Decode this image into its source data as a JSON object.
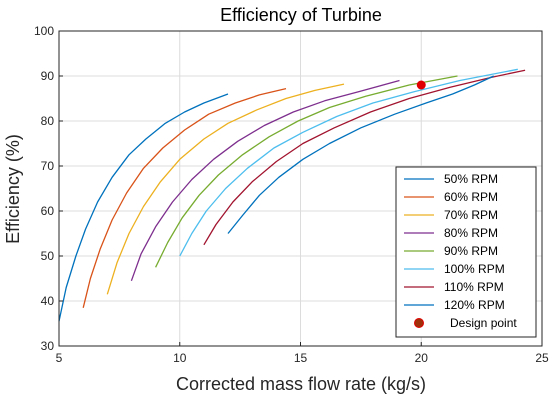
{
  "chart_data": {
    "type": "line",
    "title": "Efficiency of Turbine",
    "xlabel": "Corrected mass flow rate (kg/s)",
    "ylabel": "Efficiency (%)",
    "xlim": [
      5,
      25
    ],
    "ylim": [
      30,
      100
    ],
    "xticks": [
      5,
      10,
      15,
      20,
      25
    ],
    "yticks": [
      30,
      40,
      50,
      60,
      70,
      80,
      90,
      100
    ],
    "grid": true,
    "legend_position": "lower-right",
    "series": [
      {
        "name": "50% RPM",
        "color": "#0072BD",
        "points": [
          [
            5.0,
            35.5
          ],
          [
            5.3,
            43.0
          ],
          [
            5.7,
            50.0
          ],
          [
            6.1,
            56.0
          ],
          [
            6.6,
            62.0
          ],
          [
            7.2,
            67.5
          ],
          [
            7.9,
            72.5
          ],
          [
            8.6,
            76.0
          ],
          [
            9.4,
            79.5
          ],
          [
            10.2,
            82.0
          ],
          [
            11.0,
            84.0
          ],
          [
            12.0,
            86.0
          ]
        ]
      },
      {
        "name": "60% RPM",
        "color": "#D95319",
        "points": [
          [
            6.0,
            38.5
          ],
          [
            6.3,
            45.0
          ],
          [
            6.7,
            51.5
          ],
          [
            7.2,
            58.0
          ],
          [
            7.8,
            64.0
          ],
          [
            8.5,
            69.5
          ],
          [
            9.3,
            74.0
          ],
          [
            10.2,
            78.0
          ],
          [
            11.2,
            81.5
          ],
          [
            12.3,
            84.0
          ],
          [
            13.3,
            85.8
          ],
          [
            14.4,
            87.2
          ]
        ]
      },
      {
        "name": "70% RPM",
        "color": "#EDB120",
        "points": [
          [
            7.0,
            41.5
          ],
          [
            7.4,
            48.5
          ],
          [
            7.9,
            55.0
          ],
          [
            8.5,
            61.0
          ],
          [
            9.2,
            66.5
          ],
          [
            10.0,
            71.5
          ],
          [
            11.0,
            76.0
          ],
          [
            12.0,
            79.5
          ],
          [
            13.2,
            82.5
          ],
          [
            14.4,
            85.0
          ],
          [
            15.6,
            86.8
          ],
          [
            16.8,
            88.2
          ]
        ]
      },
      {
        "name": "80% RPM",
        "color": "#7E2F8E",
        "points": [
          [
            8.0,
            44.5
          ],
          [
            8.4,
            50.5
          ],
          [
            9.0,
            56.5
          ],
          [
            9.7,
            62.0
          ],
          [
            10.5,
            67.0
          ],
          [
            11.4,
            71.5
          ],
          [
            12.4,
            75.5
          ],
          [
            13.5,
            79.0
          ],
          [
            14.7,
            82.0
          ],
          [
            16.0,
            84.5
          ],
          [
            17.4,
            86.5
          ],
          [
            19.1,
            89.0
          ]
        ]
      },
      {
        "name": "90% RPM",
        "color": "#77AC30",
        "points": [
          [
            9.0,
            47.5
          ],
          [
            9.5,
            53.0
          ],
          [
            10.1,
            58.5
          ],
          [
            10.8,
            63.5
          ],
          [
            11.6,
            68.0
          ],
          [
            12.6,
            72.5
          ],
          [
            13.7,
            76.5
          ],
          [
            14.9,
            80.0
          ],
          [
            16.2,
            83.0
          ],
          [
            17.7,
            85.5
          ],
          [
            19.5,
            88.0
          ],
          [
            21.5,
            90.0
          ]
        ]
      },
      {
        "name": "100% RPM",
        "color": "#4DBEEE",
        "points": [
          [
            10.0,
            50.0
          ],
          [
            10.5,
            55.0
          ],
          [
            11.1,
            60.0
          ],
          [
            11.9,
            65.0
          ],
          [
            12.8,
            69.5
          ],
          [
            13.9,
            74.0
          ],
          [
            15.1,
            77.5
          ],
          [
            16.5,
            81.0
          ],
          [
            18.0,
            84.0
          ],
          [
            19.7,
            86.5
          ],
          [
            21.6,
            89.0
          ],
          [
            24.0,
            91.5
          ]
        ]
      },
      {
        "name": "110% RPM",
        "color": "#A2142F",
        "points": [
          [
            11.0,
            52.5
          ],
          [
            11.5,
            57.0
          ],
          [
            12.2,
            62.0
          ],
          [
            13.0,
            66.5
          ],
          [
            14.0,
            71.0
          ],
          [
            15.1,
            75.0
          ],
          [
            16.4,
            78.5
          ],
          [
            17.9,
            82.0
          ],
          [
            19.5,
            85.0
          ],
          [
            21.2,
            87.5
          ],
          [
            22.9,
            89.7
          ],
          [
            24.3,
            91.3
          ]
        ]
      },
      {
        "name": "120% RPM",
        "color": "#0072BD",
        "points": [
          [
            12.0,
            55.0
          ],
          [
            12.6,
            59.0
          ],
          [
            13.3,
            63.5
          ],
          [
            14.1,
            67.5
          ],
          [
            15.1,
            71.5
          ],
          [
            16.2,
            75.0
          ],
          [
            17.5,
            78.5
          ],
          [
            18.9,
            81.5
          ],
          [
            20.2,
            84.0
          ],
          [
            21.3,
            86.0
          ],
          [
            22.2,
            88.0
          ],
          [
            23.0,
            90.0
          ]
        ]
      }
    ],
    "design_point": {
      "name": "Design point",
      "x": 20.0,
      "y": 88.0,
      "color": "#E00000"
    }
  }
}
